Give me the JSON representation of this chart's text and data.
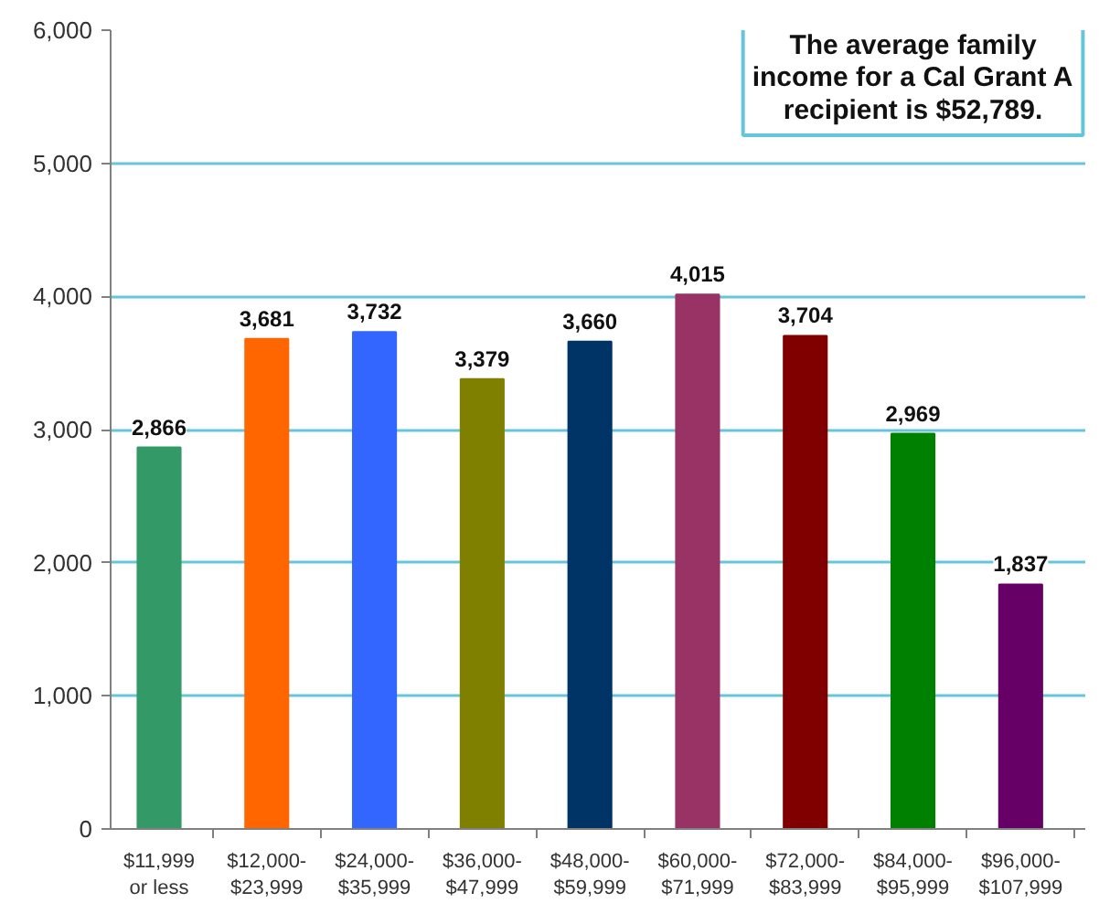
{
  "chart_data": {
    "type": "bar",
    "categories": [
      "$11,999\nor less",
      "$12,000-\n$23,999",
      "$24,000-\n$35,999",
      "$36,000-\n$47,999",
      "$48,000-\n$59,999",
      "$60,000-\n$71,999",
      "$72,000-\n$83,999",
      "$84,000-\n$95,999",
      "$96,000-\n$107,999"
    ],
    "values": [
      2866,
      3681,
      3732,
      3379,
      3660,
      4015,
      3704,
      2969,
      1837
    ],
    "colors": [
      "#339966",
      "#ff6600",
      "#3366ff",
      "#808000",
      "#003366",
      "#993366",
      "#800000",
      "#008000",
      "#660066"
    ],
    "value_labels": [
      "2,866",
      "3,681",
      "3,732",
      "3,379",
      "3,660",
      "4,015",
      "3,704",
      "2,969",
      "1,837"
    ],
    "ylim": [
      0,
      6000
    ],
    "yticks": [
      0,
      {
        "value": 1000,
        "label": "1,000"
      },
      {
        "value": 2000,
        "label": "2,000"
      },
      {
        "value": 3000,
        "label": "3,000"
      },
      {
        "value": 4000,
        "label": "4,000"
      },
      {
        "value": 5000,
        "label": "5,000"
      },
      {
        "value": 6000,
        "label": "6,000"
      }
    ],
    "grid": "y",
    "annotations": [
      "The average family\nincome for a Cal Grant A\nrecipient is $52,789."
    ]
  }
}
